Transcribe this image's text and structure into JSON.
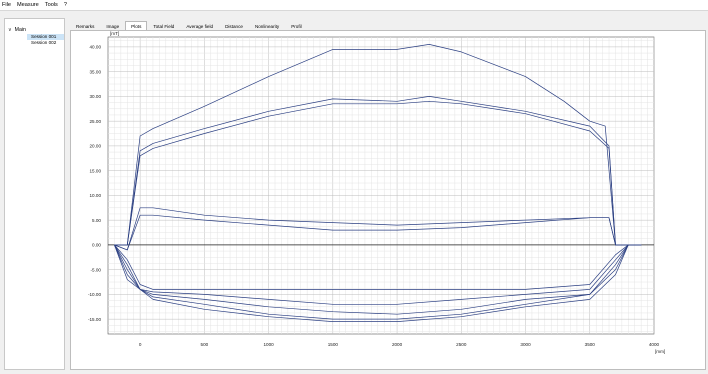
{
  "menu": [
    "File",
    "Measure",
    "Tools",
    "?"
  ],
  "tree": {
    "root": "Main",
    "items": [
      {
        "label": "Session 001",
        "selected": true
      },
      {
        "label": "Session 002",
        "selected": false
      }
    ]
  },
  "tabs": [
    {
      "label": "Remarks",
      "active": false
    },
    {
      "label": "Image",
      "active": false
    },
    {
      "label": "Plots",
      "active": true
    },
    {
      "label": "Total Field",
      "active": false
    },
    {
      "label": "Average field",
      "active": false
    },
    {
      "label": "Distance",
      "active": false
    },
    {
      "label": "Nonlinearity",
      "active": false
    },
    {
      "label": "Profil",
      "active": false
    }
  ],
  "chart_data": {
    "type": "line",
    "ylabel": "[mT]",
    "xlabel": "[mm]",
    "xlim": [
      -250,
      4000
    ],
    "ylim": [
      -18,
      42
    ],
    "xticks": [
      0,
      500,
      1000,
      1500,
      2000,
      2500,
      3000,
      3500,
      4000
    ],
    "yticks": [
      40,
      35,
      30,
      25,
      20,
      15,
      10,
      5,
      0,
      -5,
      -10,
      -15
    ],
    "ytick_labels": [
      "40.00",
      "35.00",
      "30.00",
      "25.00",
      "20.00",
      "15.00",
      "10.00",
      "5.00",
      "0.00",
      "-5.00",
      "-10.00",
      "-15.00"
    ],
    "grid": true,
    "line_color": "#2b3f82",
    "series": [
      {
        "x": [
          -200,
          -150,
          -100,
          0,
          100,
          500,
          1000,
          1500,
          1700,
          2000,
          2250,
          2500,
          3000,
          3300,
          3500,
          3620,
          3700,
          3800,
          3900
        ],
        "values": [
          0,
          0,
          0,
          22,
          23.5,
          28,
          34,
          39.5,
          39.5,
          39.5,
          40.5,
          39,
          34,
          29,
          25,
          24,
          0,
          0,
          0
        ]
      },
      {
        "x": [
          -200,
          -150,
          -100,
          0,
          100,
          500,
          1000,
          1500,
          2000,
          2250,
          2500,
          3000,
          3500,
          3650,
          3700,
          3800,
          3900
        ],
        "values": [
          0,
          0,
          0,
          19,
          20.5,
          23.5,
          27,
          29.5,
          29,
          30,
          29,
          27,
          24,
          20,
          0,
          0,
          0
        ]
      },
      {
        "x": [
          -200,
          -150,
          -100,
          0,
          100,
          500,
          1000,
          1500,
          2000,
          2250,
          2500,
          3000,
          3500,
          3650,
          3700,
          3800,
          3900
        ],
        "values": [
          0,
          0,
          0,
          18,
          19.5,
          22.5,
          26,
          28.5,
          28.5,
          29,
          28.5,
          26.5,
          23,
          19.5,
          0,
          0,
          0
        ]
      },
      {
        "x": [
          -200,
          -100,
          0,
          100,
          500,
          1000,
          1500,
          2000,
          2500,
          3000,
          3500,
          3650,
          3700,
          3800,
          3900
        ],
        "values": [
          0,
          -1,
          7.5,
          7.5,
          6,
          5,
          4.5,
          4,
          4.5,
          5,
          5.5,
          5.5,
          0,
          0,
          0
        ]
      },
      {
        "x": [
          -200,
          -100,
          0,
          100,
          500,
          1000,
          1500,
          2000,
          2500,
          3000,
          3500,
          3650,
          3700,
          3800,
          3900
        ],
        "values": [
          0,
          -1,
          6,
          6,
          5,
          4,
          3,
          3,
          3.5,
          4.5,
          5.5,
          5.5,
          0,
          0,
          0
        ]
      },
      {
        "x": [
          -200,
          -100,
          0,
          100,
          500,
          1000,
          1500,
          2000,
          2500,
          3000,
          3500,
          3700,
          3800,
          3900
        ],
        "values": [
          0,
          -3,
          -8,
          -9,
          -9,
          -9,
          -9,
          -9,
          -9,
          -9,
          -8,
          -2,
          0,
          0
        ]
      },
      {
        "x": [
          -200,
          -100,
          0,
          100,
          500,
          1000,
          1500,
          2000,
          2500,
          3000,
          3500,
          3700,
          3800,
          3900
        ],
        "values": [
          0,
          -4,
          -9,
          -9.5,
          -10,
          -11,
          -12,
          -12,
          -11,
          -10,
          -9,
          -3,
          0,
          0
        ]
      },
      {
        "x": [
          -200,
          -100,
          0,
          100,
          500,
          1000,
          1500,
          2000,
          2500,
          3000,
          3500,
          3700,
          3800,
          3900
        ],
        "values": [
          0,
          -5,
          -9,
          -10,
          -11,
          -12.5,
          -13.5,
          -14,
          -13,
          -11,
          -10,
          -4,
          0,
          0
        ]
      },
      {
        "x": [
          -200,
          -100,
          0,
          100,
          500,
          1000,
          1500,
          2000,
          2500,
          3000,
          3500,
          3700,
          3800,
          3900
        ],
        "values": [
          0,
          -6,
          -9,
          -10.5,
          -12,
          -14,
          -15,
          -15,
          -14,
          -12,
          -10,
          -5,
          0,
          0
        ]
      },
      {
        "x": [
          -200,
          -100,
          0,
          100,
          500,
          1000,
          1500,
          2000,
          2500,
          3000,
          3500,
          3700,
          3800,
          3900
        ],
        "values": [
          0,
          -7,
          -9,
          -11,
          -13,
          -14.5,
          -15.5,
          -15.5,
          -14.5,
          -12.5,
          -11,
          -6,
          0,
          0
        ]
      }
    ]
  }
}
